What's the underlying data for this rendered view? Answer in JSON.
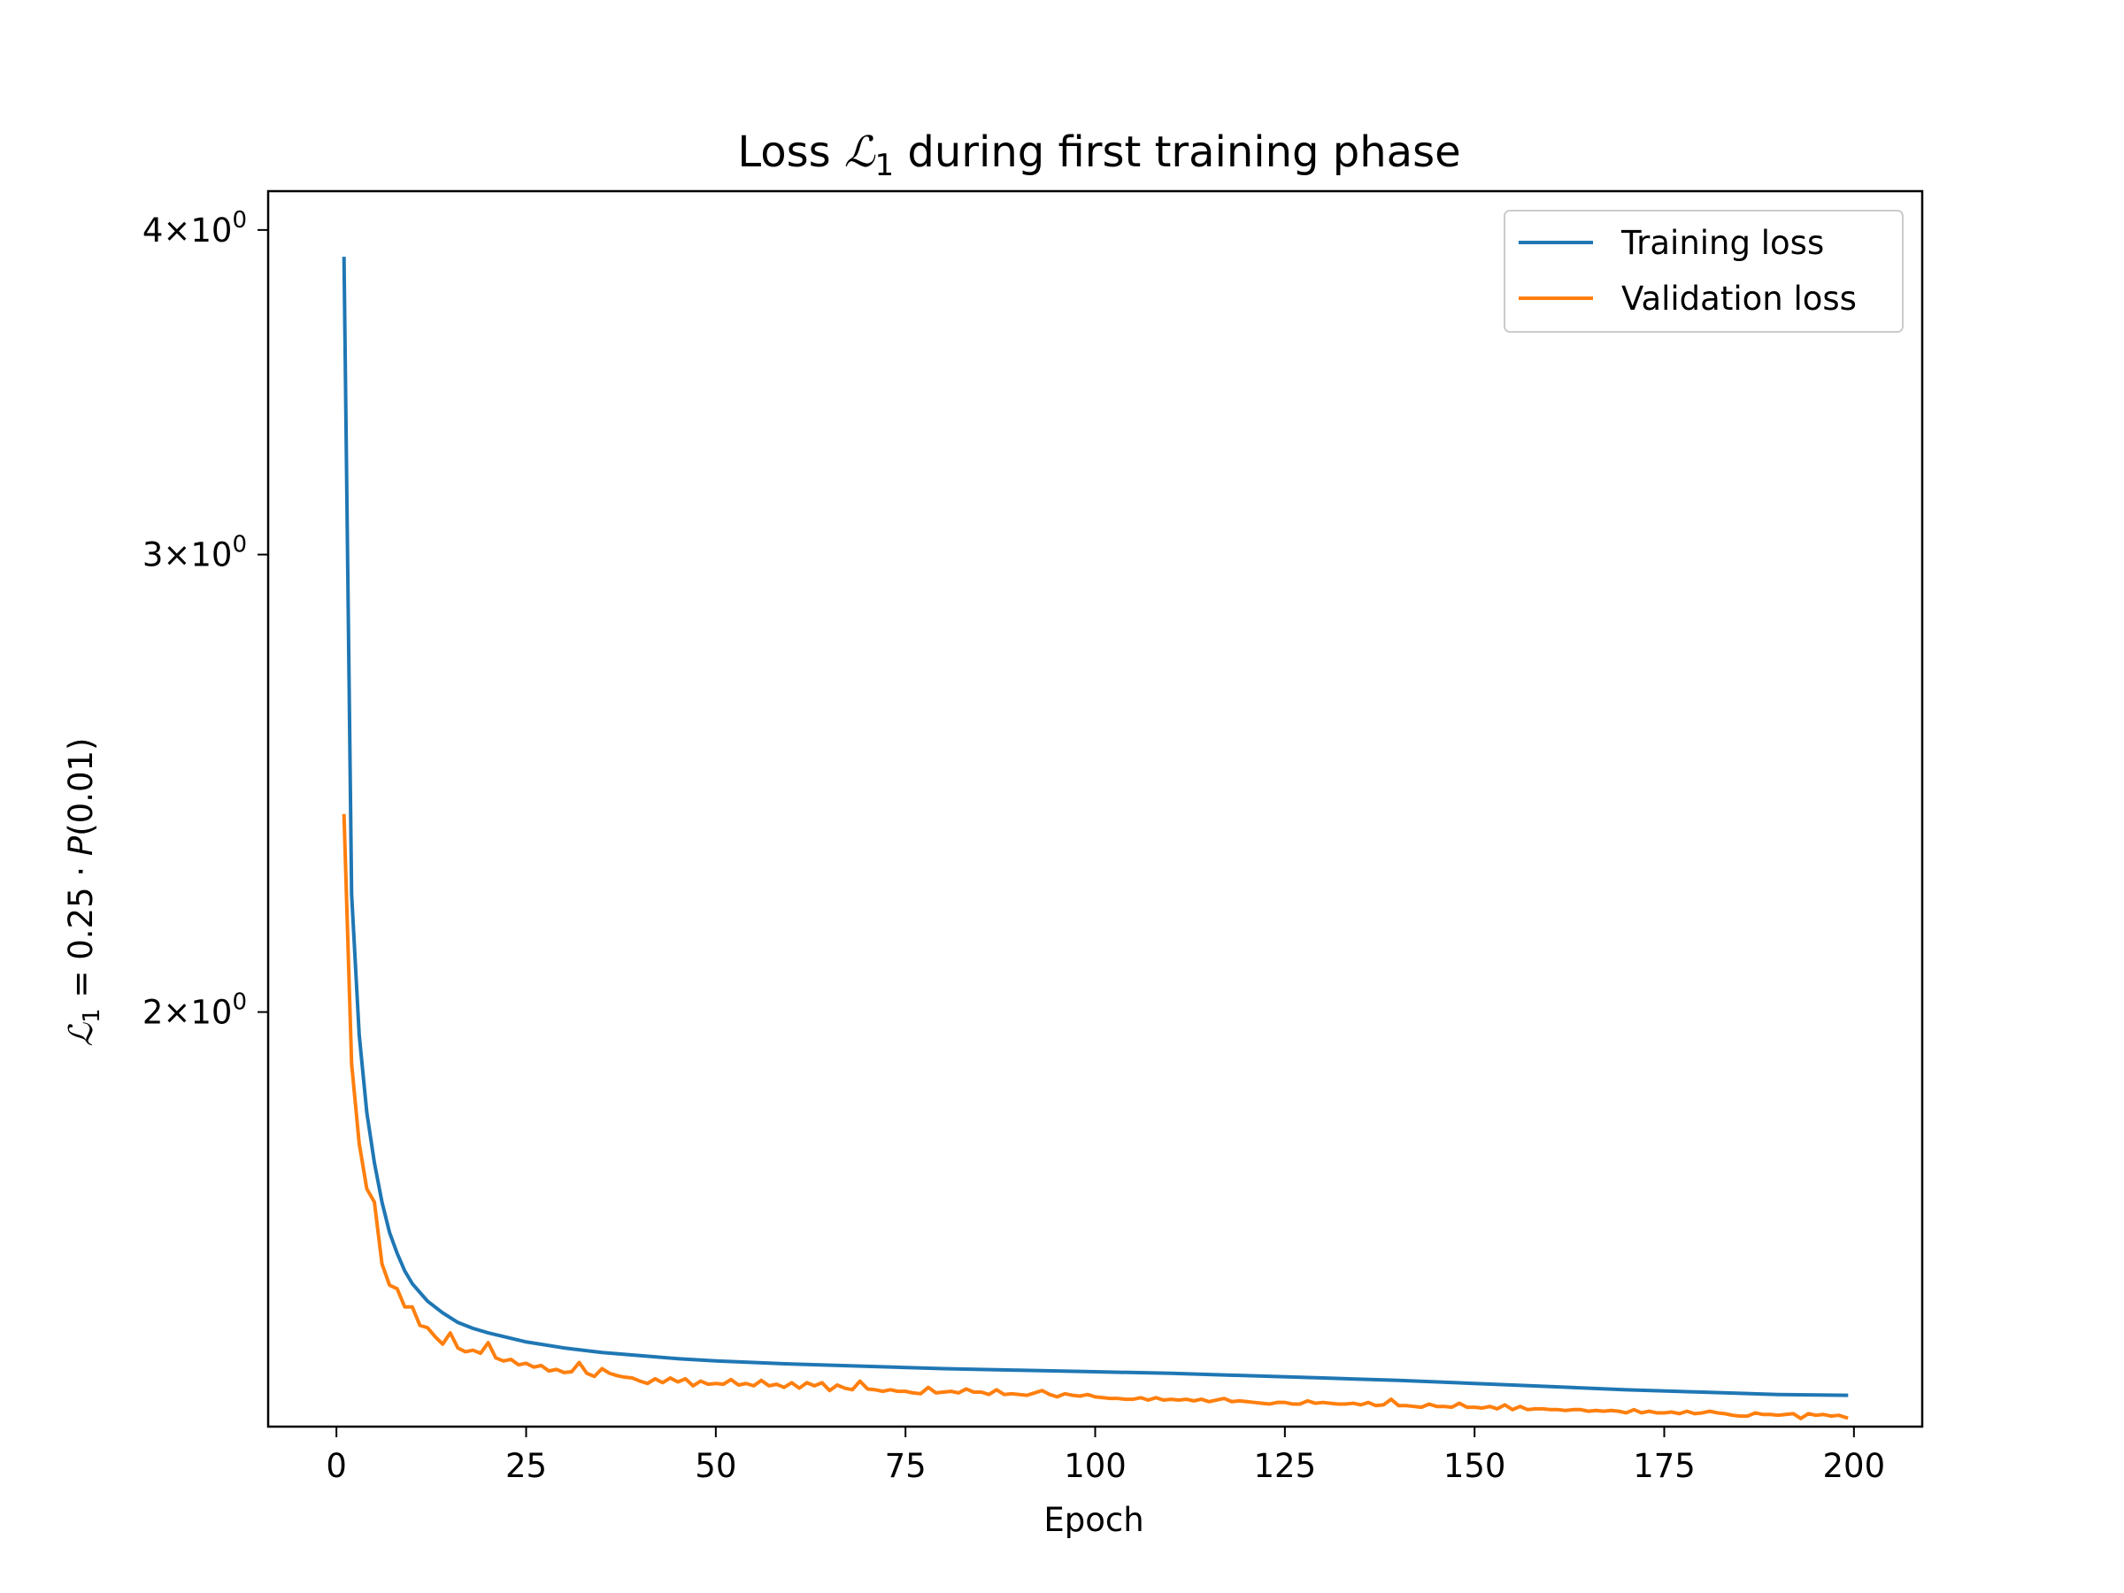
{
  "chart_data": {
    "type": "line",
    "title": {
      "before": "Loss ",
      "symbol": "ℒ",
      "sub": "1",
      "after": " during first training phase"
    },
    "xlabel": "Epoch",
    "ylabel": {
      "symbol": "ℒ",
      "sub": "1",
      "rest": " = 0.25 · ",
      "p": "P",
      "arg": "(0.01)"
    },
    "xlim": [
      -9.0,
      209.0
    ],
    "ylim": [
      1.385,
      4.14
    ],
    "yscale": "log",
    "grid": false,
    "legend_placement": "top-right",
    "x_ticks": [
      {
        "value": 0,
        "label": "0"
      },
      {
        "value": 25,
        "label": "25"
      },
      {
        "value": 50,
        "label": "50"
      },
      {
        "value": 75,
        "label": "75"
      },
      {
        "value": 100,
        "label": "100"
      },
      {
        "value": 125,
        "label": "125"
      },
      {
        "value": 150,
        "label": "150"
      },
      {
        "value": 175,
        "label": "175"
      },
      {
        "value": 200,
        "label": "200"
      }
    ],
    "y_ticks": [
      {
        "value": 2,
        "mant": "2",
        "exp": "0"
      },
      {
        "value": 3,
        "mant": "3",
        "exp": "0"
      },
      {
        "value": 4,
        "mant": "4",
        "exp": "0"
      }
    ],
    "series": [
      {
        "name": "Training loss",
        "color": "#1f77b4",
        "points": [
          [
            1,
            3.9
          ],
          [
            2,
            2.22
          ],
          [
            3,
            1.96
          ],
          [
            4,
            1.83
          ],
          [
            5,
            1.75
          ],
          [
            6,
            1.69
          ],
          [
            7,
            1.645
          ],
          [
            8,
            1.615
          ],
          [
            9,
            1.59
          ],
          [
            10,
            1.572
          ],
          [
            12,
            1.548
          ],
          [
            14,
            1.532
          ],
          [
            16,
            1.519
          ],
          [
            18,
            1.511
          ],
          [
            20,
            1.505
          ],
          [
            25,
            1.493
          ],
          [
            30,
            1.485
          ],
          [
            35,
            1.479
          ],
          [
            40,
            1.475
          ],
          [
            45,
            1.471
          ],
          [
            50,
            1.468
          ],
          [
            60,
            1.464
          ],
          [
            70,
            1.461
          ],
          [
            80,
            1.458
          ],
          [
            90,
            1.456
          ],
          [
            100,
            1.454
          ],
          [
            110,
            1.452
          ],
          [
            120,
            1.449
          ],
          [
            130,
            1.446
          ],
          [
            140,
            1.443
          ],
          [
            150,
            1.439
          ],
          [
            160,
            1.435
          ],
          [
            170,
            1.431
          ],
          [
            180,
            1.428
          ],
          [
            190,
            1.425
          ],
          [
            199,
            1.424
          ]
        ]
      },
      {
        "name": "Validation loss",
        "color": "#ff7f0e",
        "points": [
          [
            1,
            2.38
          ],
          [
            2,
            1.91
          ],
          [
            3,
            1.78
          ],
          [
            4,
            1.71
          ],
          [
            5,
            1.69
          ],
          [
            6,
            1.6
          ],
          [
            7,
            1.57
          ],
          [
            8,
            1.565
          ],
          [
            9,
            1.54
          ],
          [
            10,
            1.54
          ],
          [
            11,
            1.515
          ],
          [
            12,
            1.512
          ],
          [
            13,
            1.5
          ],
          [
            14,
            1.49
          ],
          [
            15,
            1.505
          ],
          [
            16,
            1.485
          ],
          [
            17,
            1.48
          ],
          [
            18,
            1.482
          ],
          [
            19,
            1.478
          ],
          [
            20,
            1.492
          ],
          [
            21,
            1.472
          ],
          [
            22,
            1.468
          ],
          [
            23,
            1.47
          ],
          [
            24,
            1.463
          ],
          [
            25,
            1.465
          ],
          [
            26,
            1.46
          ],
          [
            27,
            1.462
          ],
          [
            28,
            1.455
          ],
          [
            29,
            1.457
          ],
          [
            30,
            1.453
          ],
          [
            31,
            1.454
          ],
          [
            32,
            1.466
          ],
          [
            33,
            1.452
          ],
          [
            34,
            1.448
          ],
          [
            35,
            1.458
          ],
          [
            36,
            1.452
          ],
          [
            37,
            1.449
          ],
          [
            38,
            1.447
          ],
          [
            39,
            1.446
          ],
          [
            40,
            1.442
          ],
          [
            41,
            1.439
          ],
          [
            42,
            1.445
          ],
          [
            43,
            1.44
          ],
          [
            44,
            1.446
          ],
          [
            45,
            1.441
          ],
          [
            46,
            1.445
          ],
          [
            47,
            1.436
          ],
          [
            48,
            1.442
          ],
          [
            49,
            1.438
          ],
          [
            50,
            1.439
          ],
          [
            51,
            1.438
          ],
          [
            52,
            1.444
          ],
          [
            53,
            1.437
          ],
          [
            54,
            1.439
          ],
          [
            55,
            1.436
          ],
          [
            56,
            1.443
          ],
          [
            57,
            1.436
          ],
          [
            58,
            1.438
          ],
          [
            59,
            1.434
          ],
          [
            60,
            1.44
          ],
          [
            61,
            1.433
          ],
          [
            62,
            1.44
          ],
          [
            63,
            1.436
          ],
          [
            64,
            1.44
          ],
          [
            65,
            1.43
          ],
          [
            66,
            1.437
          ],
          [
            67,
            1.433
          ],
          [
            68,
            1.431
          ],
          [
            69,
            1.442
          ],
          [
            70,
            1.432
          ],
          [
            71,
            1.431
          ],
          [
            72,
            1.429
          ],
          [
            73,
            1.431
          ],
          [
            74,
            1.429
          ],
          [
            75,
            1.429
          ],
          [
            76,
            1.427
          ],
          [
            77,
            1.426
          ],
          [
            78,
            1.434
          ],
          [
            79,
            1.427
          ],
          [
            80,
            1.428
          ],
          [
            81,
            1.429
          ],
          [
            82,
            1.427
          ],
          [
            83,
            1.432
          ],
          [
            84,
            1.428
          ],
          [
            85,
            1.428
          ],
          [
            86,
            1.425
          ],
          [
            87,
            1.431
          ],
          [
            88,
            1.425
          ],
          [
            89,
            1.426
          ],
          [
            90,
            1.425
          ],
          [
            91,
            1.424
          ],
          [
            92,
            1.427
          ],
          [
            93,
            1.43
          ],
          [
            94,
            1.425
          ],
          [
            95,
            1.422
          ],
          [
            96,
            1.426
          ],
          [
            97,
            1.424
          ],
          [
            98,
            1.423
          ],
          [
            99,
            1.425
          ],
          [
            100,
            1.422
          ],
          [
            101,
            1.421
          ],
          [
            102,
            1.42
          ],
          [
            103,
            1.42
          ],
          [
            104,
            1.419
          ],
          [
            105,
            1.419
          ],
          [
            106,
            1.421
          ],
          [
            107,
            1.418
          ],
          [
            108,
            1.421
          ],
          [
            109,
            1.418
          ],
          [
            110,
            1.419
          ],
          [
            111,
            1.418
          ],
          [
            112,
            1.419
          ],
          [
            113,
            1.417
          ],
          [
            114,
            1.419
          ],
          [
            115,
            1.416
          ],
          [
            116,
            1.418
          ],
          [
            117,
            1.42
          ],
          [
            118,
            1.416
          ],
          [
            119,
            1.417
          ],
          [
            120,
            1.416
          ],
          [
            121,
            1.415
          ],
          [
            122,
            1.414
          ],
          [
            123,
            1.413
          ],
          [
            124,
            1.415
          ],
          [
            125,
            1.415
          ],
          [
            126,
            1.413
          ],
          [
            127,
            1.413
          ],
          [
            128,
            1.417
          ],
          [
            129,
            1.414
          ],
          [
            130,
            1.415
          ],
          [
            131,
            1.414
          ],
          [
            132,
            1.413
          ],
          [
            133,
            1.413
          ],
          [
            134,
            1.414
          ],
          [
            135,
            1.412
          ],
          [
            136,
            1.415
          ],
          [
            137,
            1.411
          ],
          [
            138,
            1.412
          ],
          [
            139,
            1.419
          ],
          [
            140,
            1.411
          ],
          [
            141,
            1.411
          ],
          [
            142,
            1.41
          ],
          [
            143,
            1.409
          ],
          [
            144,
            1.413
          ],
          [
            145,
            1.41
          ],
          [
            146,
            1.41
          ],
          [
            147,
            1.409
          ],
          [
            148,
            1.414
          ],
          [
            149,
            1.409
          ],
          [
            150,
            1.409
          ],
          [
            151,
            1.408
          ],
          [
            152,
            1.41
          ],
          [
            153,
            1.407
          ],
          [
            154,
            1.412
          ],
          [
            155,
            1.406
          ],
          [
            156,
            1.41
          ],
          [
            157,
            1.406
          ],
          [
            158,
            1.407
          ],
          [
            159,
            1.407
          ],
          [
            160,
            1.406
          ],
          [
            161,
            1.406
          ],
          [
            162,
            1.405
          ],
          [
            163,
            1.406
          ],
          [
            164,
            1.406
          ],
          [
            165,
            1.404
          ],
          [
            166,
            1.405
          ],
          [
            167,
            1.404
          ],
          [
            168,
            1.405
          ],
          [
            169,
            1.404
          ],
          [
            170,
            1.402
          ],
          [
            171,
            1.406
          ],
          [
            172,
            1.402
          ],
          [
            173,
            1.404
          ],
          [
            174,
            1.402
          ],
          [
            175,
            1.402
          ],
          [
            176,
            1.403
          ],
          [
            177,
            1.401
          ],
          [
            178,
            1.404
          ],
          [
            179,
            1.401
          ],
          [
            180,
            1.402
          ],
          [
            181,
            1.404
          ],
          [
            182,
            1.402
          ],
          [
            183,
            1.401
          ],
          [
            184,
            1.399
          ],
          [
            185,
            1.398
          ],
          [
            186,
            1.398
          ],
          [
            187,
            1.402
          ],
          [
            188,
            1.4
          ],
          [
            189,
            1.4
          ],
          [
            190,
            1.399
          ],
          [
            191,
            1.4
          ],
          [
            192,
            1.401
          ],
          [
            193,
            1.395
          ],
          [
            194,
            1.401
          ],
          [
            195,
            1.399
          ],
          [
            196,
            1.4
          ],
          [
            197,
            1.398
          ],
          [
            198,
            1.399
          ],
          [
            199,
            1.396
          ]
        ]
      }
    ]
  }
}
